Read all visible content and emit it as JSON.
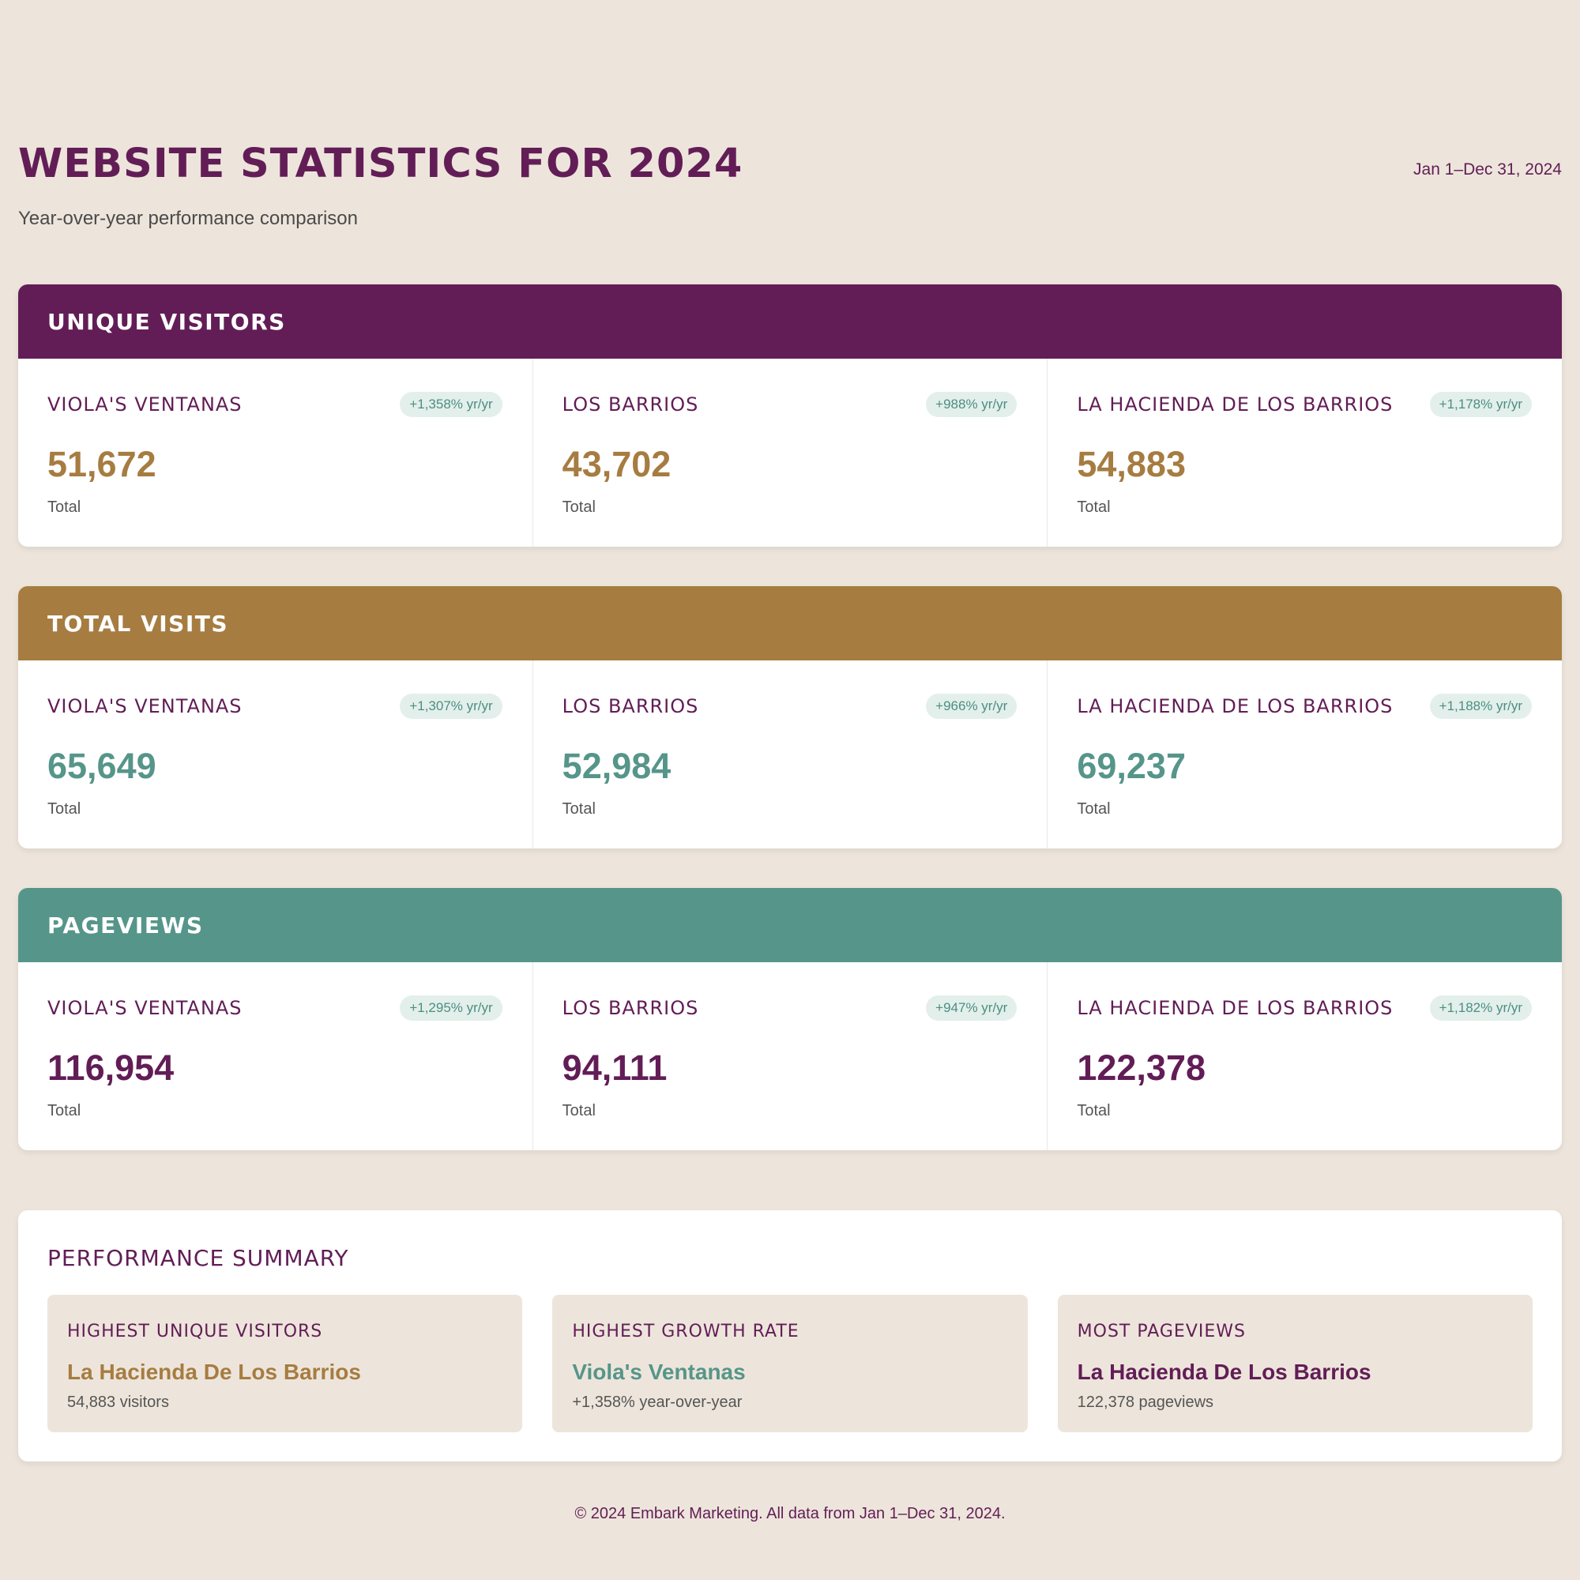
{
  "header": {
    "title": "WEBSITE STATISTICS FOR 2024",
    "subtitle": "Year-over-year performance comparison",
    "date_range": "Jan 1–Dec 31, 2024"
  },
  "colors": {
    "purple": "#621d56",
    "gold": "#a67c41",
    "teal": "#56958a",
    "background": "#ede5db"
  },
  "sections": {
    "unique_visitors": {
      "title": "UNIQUE VISITORS",
      "cards": [
        {
          "site": "VIOLA'S VENTANAS",
          "growth": "+1,358% yr/yr",
          "value": "51,672",
          "label": "Total"
        },
        {
          "site": "LOS BARRIOS",
          "growth": "+988% yr/yr",
          "value": "43,702",
          "label": "Total"
        },
        {
          "site": "LA HACIENDA DE LOS BARRIOS",
          "growth": "+1,178% yr/yr",
          "value": "54,883",
          "label": "Total"
        }
      ]
    },
    "total_visits": {
      "title": "TOTAL VISITS",
      "cards": [
        {
          "site": "VIOLA'S VENTANAS",
          "growth": "+1,307% yr/yr",
          "value": "65,649",
          "label": "Total"
        },
        {
          "site": "LOS BARRIOS",
          "growth": "+966% yr/yr",
          "value": "52,984",
          "label": "Total"
        },
        {
          "site": "LA HACIENDA DE LOS BARRIOS",
          "growth": "+1,188% yr/yr",
          "value": "69,237",
          "label": "Total"
        }
      ]
    },
    "pageviews": {
      "title": "PAGEVIEWS",
      "cards": [
        {
          "site": "VIOLA'S VENTANAS",
          "growth": "+1,295% yr/yr",
          "value": "116,954",
          "label": "Total"
        },
        {
          "site": "LOS BARRIOS",
          "growth": "+947% yr/yr",
          "value": "94,111",
          "label": "Total"
        },
        {
          "site": "LA HACIENDA DE LOS BARRIOS",
          "growth": "+1,182% yr/yr",
          "value": "122,378",
          "label": "Total"
        }
      ]
    }
  },
  "summary": {
    "title": "PERFORMANCE SUMMARY",
    "cards": [
      {
        "label": "HIGHEST UNIQUE VISITORS",
        "value": "La Hacienda De Los Barrios",
        "detail": "54,883 visitors"
      },
      {
        "label": "HIGHEST GROWTH RATE",
        "value": "Viola's Ventanas",
        "detail": "+1,358% year-over-year"
      },
      {
        "label": "MOST PAGEVIEWS",
        "value": "La Hacienda De Los Barrios",
        "detail": "122,378 pageviews"
      }
    ]
  },
  "footer": {
    "text": "© 2024 Embark Marketing. All data from Jan 1–Dec 31, 2024."
  }
}
